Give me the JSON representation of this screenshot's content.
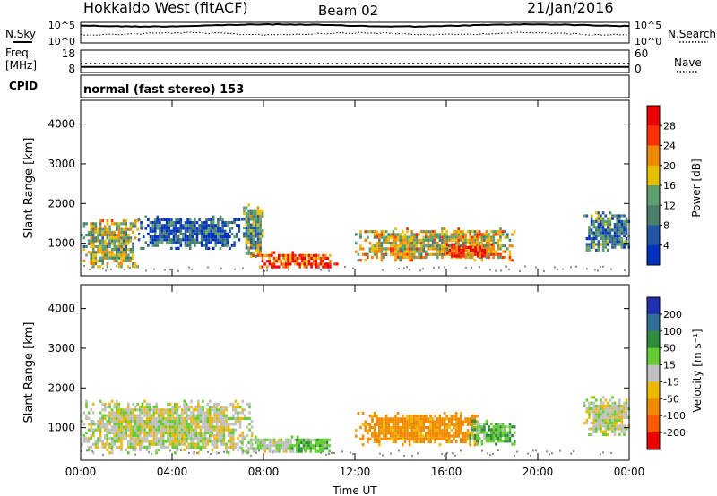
{
  "header": {
    "title": "Hokkaido West (fitACF)",
    "beam": "Beam 02",
    "date": "21/Jan/2016"
  },
  "noise_panel": {
    "left_label": "N.Sky",
    "right_label": "N.Search",
    "ticks": [
      "10^5",
      "10^0"
    ],
    "sky_level": 0.15,
    "search_level": 0.55
  },
  "freq_panel": {
    "left_label_1": "Freq.",
    "left_label_2": "[MHz]",
    "left_ticks": [
      "18",
      "8"
    ],
    "right_label": "Nave",
    "right_ticks": [
      "60",
      "0"
    ],
    "freq_mhz": 10.5,
    "nave": 24
  },
  "cpid": {
    "label": "CPID",
    "text": "normal (fast stereo) 153"
  },
  "colors": {
    "power": [
      "#0030c0",
      "#2255a8",
      "#4a7f6a",
      "#5fa070",
      "#e6c000",
      "#f08800",
      "#ff3000",
      "#ee0000"
    ],
    "velocity": [
      "#2030b0",
      "#2f6f9a",
      "#2f8c3a",
      "#66cc33",
      "#c0c0c0",
      "#eeb800",
      "#f28a00",
      "#ff5a00",
      "#ee0000"
    ],
    "ground": "#8c8c8c"
  },
  "chart_data": [
    {
      "type": "heatmap",
      "name": "power",
      "ylabel": "Slant Range [km]",
      "x": [
        "00:00",
        "04:00",
        "08:00",
        "12:00",
        "16:00",
        "20:00",
        "00:00"
      ],
      "xlim": [
        0,
        24
      ],
      "ylim": [
        180,
        4600
      ],
      "yticks": [
        1000,
        2000,
        3000,
        4000
      ],
      "colorbar": {
        "label": "Power [dB]",
        "ticks": [
          4,
          8,
          12,
          16,
          20,
          24,
          28
        ],
        "range": [
          0,
          32
        ]
      },
      "echo_regions": [
        {
          "t": [
            0.0,
            2.5
          ],
          "r": [
            400,
            1600
          ],
          "level": 0.55
        },
        {
          "t": [
            2.5,
            7.0
          ],
          "r": [
            900,
            1700
          ],
          "level": 0.25
        },
        {
          "t": [
            7.0,
            8.0
          ],
          "r": [
            700,
            2000
          ],
          "level": 0.45
        },
        {
          "t": [
            7.5,
            11.3
          ],
          "r": [
            400,
            800
          ],
          "level": 0.85
        },
        {
          "t": [
            12.0,
            19.0
          ],
          "r": [
            600,
            1400
          ],
          "level": 0.6
        },
        {
          "t": [
            16.0,
            18.0
          ],
          "r": [
            700,
            1000
          ],
          "level": 0.95
        },
        {
          "t": [
            22.0,
            24.0
          ],
          "r": [
            800,
            1800
          ],
          "level": 0.35
        }
      ]
    },
    {
      "type": "heatmap",
      "name": "velocity",
      "ylabel": "Slant Range [km]",
      "xlabel": "Time UT",
      "x": [
        "00:00",
        "04:00",
        "08:00",
        "12:00",
        "16:00",
        "20:00",
        "00:00"
      ],
      "xlim": [
        0,
        24
      ],
      "ylim": [
        180,
        4600
      ],
      "yticks": [
        1000,
        2000,
        3000,
        4000
      ],
      "colorbar": {
        "label": "Velocity [m s⁻¹]",
        "ticks": [
          200,
          100,
          50,
          15,
          -15,
          -50,
          -100,
          -200
        ],
        "range": [
          -250,
          250
        ]
      },
      "echo_regions": [
        {
          "t": [
            0.0,
            7.5
          ],
          "r": [
            400,
            1700
          ],
          "vel": 0
        },
        {
          "t": [
            7.0,
            9.5
          ],
          "r": [
            400,
            800
          ],
          "vel": 10
        },
        {
          "t": [
            9.0,
            11.0
          ],
          "r": [
            400,
            800
          ],
          "vel": 40
        },
        {
          "t": [
            12.0,
            17.5
          ],
          "r": [
            600,
            1400
          ],
          "vel": -70
        },
        {
          "t": [
            17.0,
            19.0
          ],
          "r": [
            600,
            1200
          ],
          "vel": 40
        },
        {
          "t": [
            22.0,
            24.0
          ],
          "r": [
            800,
            1800
          ],
          "vel": 0
        }
      ]
    }
  ]
}
